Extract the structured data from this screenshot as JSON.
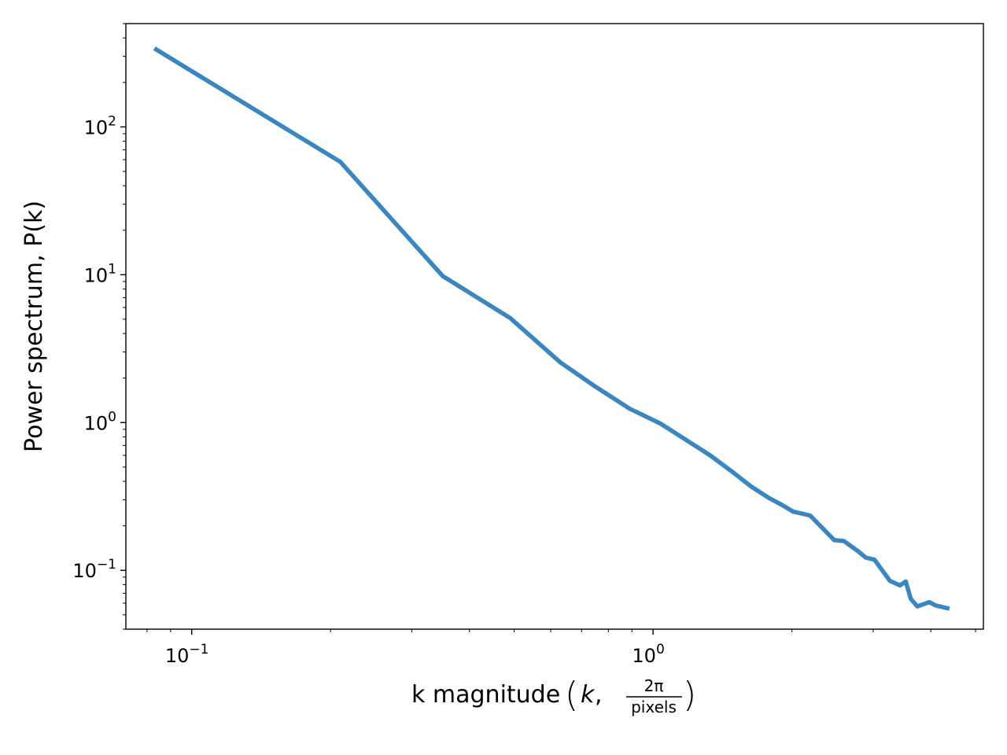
{
  "chart_data": {
    "type": "line",
    "xscale": "log",
    "yscale": "log",
    "xlim": [
      0.072,
      5.2
    ],
    "ylim": [
      0.04,
      500
    ],
    "grid": false,
    "legend": "none",
    "xlabel": {
      "prefix": "k magnitude",
      "var": "k",
      "frac_num": "2π",
      "frac_den": "pixels"
    },
    "ylabel": "Power spectrum, P(k)",
    "x_ticks": [
      {
        "value": 0.1,
        "base": "10",
        "exp": "−1"
      },
      {
        "value": 1,
        "base": "10",
        "exp": "0"
      }
    ],
    "y_ticks": [
      {
        "value": 0.1,
        "base": "10",
        "exp": "−1"
      },
      {
        "value": 1,
        "base": "10",
        "exp": "0"
      },
      {
        "value": 10,
        "base": "10",
        "exp": "1"
      },
      {
        "value": 100,
        "base": "10",
        "exp": "2"
      }
    ],
    "series": [
      {
        "color": "#3a86c0",
        "x": [
          0.083,
          0.21,
          0.35,
          0.49,
          0.63,
          0.75,
          0.89,
          1.04,
          1.33,
          1.49,
          1.63,
          1.78,
          1.91,
          2.01,
          2.19,
          2.47,
          2.59,
          2.78,
          2.89,
          3.02,
          3.26,
          3.43,
          3.53,
          3.62,
          3.74,
          3.97,
          4.09,
          4.39
        ],
        "y": [
          340,
          58,
          9.8,
          5.1,
          2.55,
          1.75,
          1.24,
          0.98,
          0.6,
          0.46,
          0.37,
          0.31,
          0.275,
          0.25,
          0.235,
          0.16,
          0.158,
          0.135,
          0.122,
          0.118,
          0.085,
          0.079,
          0.084,
          0.064,
          0.057,
          0.061,
          0.058,
          0.055
        ]
      }
    ]
  }
}
